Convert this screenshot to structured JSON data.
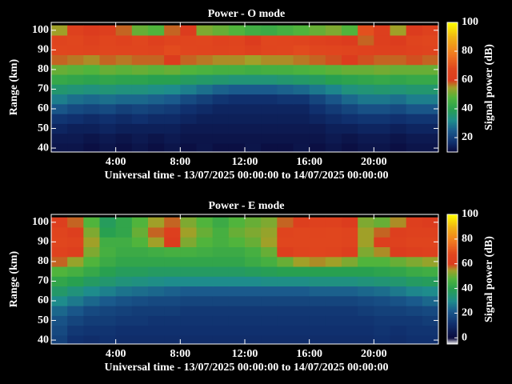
{
  "chart_data": [
    {
      "type": "heatmap",
      "title": "Power - O mode",
      "xlabel": "Universal time - 13/07/2025 00:00:00 to 14/07/2025 00:00:00",
      "ylabel": "Range (km)",
      "colorbar_label": "Signal power (dB)",
      "xlim": [
        0,
        24
      ],
      "ylim": [
        38,
        104
      ],
      "zlim": [
        10,
        100
      ],
      "xticks": [
        {
          "value": 4,
          "label": "4:00"
        },
        {
          "value": 8,
          "label": "8:00"
        },
        {
          "value": 12,
          "label": "12:00"
        },
        {
          "value": 16,
          "label": "16:00"
        },
        {
          "value": 20,
          "label": "20:00"
        }
      ],
      "yticks": [
        40,
        50,
        60,
        70,
        80,
        90,
        100
      ],
      "zticks": [
        20,
        40,
        60,
        80,
        100
      ],
      "colorscale": [
        [
          10,
          "#0a0a3c"
        ],
        [
          17,
          "#10306e"
        ],
        [
          25,
          "#1a5a8c"
        ],
        [
          32,
          "#1e8c8c"
        ],
        [
          40,
          "#28a050"
        ],
        [
          48,
          "#50b43c"
        ],
        [
          55,
          "#a0a028"
        ],
        [
          60,
          "#dc3c1e"
        ],
        [
          68,
          "#e0461e"
        ],
        [
          78,
          "#f07820"
        ],
        [
          90,
          "#f0b414"
        ],
        [
          100,
          "#ffff00"
        ]
      ],
      "x": [
        0.5,
        1.5,
        2.5,
        3.5,
        4.5,
        5.5,
        6.5,
        7.5,
        8.5,
        9.5,
        10.5,
        11.5,
        12.5,
        13.5,
        14.5,
        15.5,
        16.5,
        17.5,
        18.5,
        19.5,
        20.5,
        21.5,
        22.5,
        23.5
      ],
      "y": [
        40,
        45,
        50,
        55,
        60,
        65,
        70,
        75,
        80,
        85,
        90,
        95,
        100
      ],
      "z": [
        [
          12,
          12,
          11,
          12,
          11,
          12,
          11,
          12,
          11,
          12,
          11,
          11,
          12,
          11,
          11,
          12,
          11,
          12,
          11,
          12,
          12,
          11,
          12,
          12
        ],
        [
          13,
          13,
          12,
          13,
          12,
          13,
          12,
          13,
          12,
          12,
          12,
          12,
          12,
          12,
          12,
          12,
          12,
          13,
          12,
          13,
          13,
          12,
          13,
          13
        ],
        [
          15,
          14,
          14,
          15,
          14,
          14,
          14,
          14,
          13,
          13,
          13,
          13,
          13,
          13,
          13,
          13,
          13,
          14,
          14,
          15,
          15,
          14,
          15,
          15
        ],
        [
          18,
          17,
          16,
          17,
          16,
          17,
          16,
          16,
          15,
          14,
          14,
          14,
          14,
          14,
          14,
          14,
          15,
          16,
          17,
          18,
          18,
          17,
          18,
          18
        ],
        [
          24,
          22,
          21,
          22,
          20,
          21,
          20,
          19,
          17,
          16,
          15,
          15,
          15,
          15,
          15,
          15,
          17,
          19,
          21,
          23,
          23,
          22,
          24,
          24
        ],
        [
          30,
          28,
          27,
          28,
          27,
          27,
          26,
          25,
          22,
          20,
          18,
          17,
          17,
          17,
          18,
          18,
          21,
          24,
          27,
          29,
          29,
          28,
          30,
          30
        ],
        [
          36,
          35,
          34,
          35,
          34,
          34,
          33,
          32,
          30,
          28,
          26,
          25,
          25,
          25,
          26,
          27,
          29,
          31,
          34,
          35,
          36,
          35,
          36,
          36
        ],
        [
          43,
          42,
          41,
          42,
          41,
          41,
          40,
          40,
          38,
          37,
          36,
          35,
          35,
          35,
          36,
          37,
          38,
          40,
          41,
          42,
          43,
          42,
          43,
          43
        ],
        [
          50,
          49,
          48,
          50,
          49,
          50,
          49,
          50,
          48,
          47,
          46,
          46,
          45,
          46,
          46,
          47,
          48,
          49,
          50,
          50,
          51,
          50,
          50,
          50
        ],
        [
          58,
          57,
          56,
          58,
          57,
          58,
          58,
          60,
          58,
          57,
          56,
          56,
          55,
          56,
          56,
          57,
          58,
          59,
          60,
          59,
          58,
          58,
          59,
          58
        ],
        [
          68,
          67,
          66,
          68,
          67,
          67,
          66,
          69,
          68,
          67,
          66,
          67,
          64,
          67,
          68,
          69,
          68,
          67,
          66,
          65,
          64,
          63,
          65,
          66
        ],
        [
          66,
          68,
          64,
          67,
          65,
          68,
          63,
          66,
          67,
          68,
          65,
          66,
          60,
          68,
          67,
          66,
          64,
          62,
          60,
          58,
          62,
          60,
          66,
          68
        ],
        [
          55,
          64,
          60,
          62,
          58,
          50,
          48,
          58,
          60,
          52,
          50,
          48,
          45,
          44,
          46,
          48,
          50,
          52,
          48,
          70,
          62,
          55,
          60,
          64
        ]
      ]
    },
    {
      "type": "heatmap",
      "title": "Power - E mode",
      "xlabel": "Universal time - 13/07/2025 00:00:00 to 14/07/2025 00:00:00",
      "ylabel": "Range (km)",
      "colorbar_label": "Signal power (dB)",
      "xlim": [
        0,
        24
      ],
      "ylim": [
        38,
        104
      ],
      "zlim": [
        -5,
        100
      ],
      "xticks": [
        {
          "value": 4,
          "label": "4:00"
        },
        {
          "value": 8,
          "label": "8:00"
        },
        {
          "value": 12,
          "label": "12:00"
        },
        {
          "value": 16,
          "label": "16:00"
        },
        {
          "value": 20,
          "label": "20:00"
        }
      ],
      "yticks": [
        40,
        50,
        60,
        70,
        80,
        90,
        100
      ],
      "zticks": [
        0,
        20,
        40,
        60,
        80,
        100
      ],
      "colorscale": [
        [
          -5,
          "#ffffff"
        ],
        [
          0,
          "#0a0a3c"
        ],
        [
          12,
          "#10306e"
        ],
        [
          22,
          "#1a5a8c"
        ],
        [
          30,
          "#1e8c8c"
        ],
        [
          40,
          "#28a050"
        ],
        [
          48,
          "#50b43c"
        ],
        [
          55,
          "#a0a028"
        ],
        [
          60,
          "#dc3c1e"
        ],
        [
          68,
          "#e0461e"
        ],
        [
          78,
          "#f07820"
        ],
        [
          90,
          "#f0b414"
        ],
        [
          100,
          "#ffff00"
        ]
      ],
      "x": [
        0.5,
        1.5,
        2.5,
        3.5,
        4.5,
        5.5,
        6.5,
        7.5,
        8.5,
        9.5,
        10.5,
        11.5,
        12.5,
        13.5,
        14.5,
        15.5,
        16.5,
        17.5,
        18.5,
        19.5,
        20.5,
        21.5,
        22.5,
        23.5
      ],
      "y": [
        40,
        45,
        50,
        55,
        60,
        65,
        70,
        75,
        80,
        85,
        90,
        95,
        100
      ],
      "z": [
        [
          16,
          12,
          11,
          12,
          11,
          11,
          11,
          11,
          11,
          11,
          11,
          11,
          11,
          11,
          11,
          11,
          11,
          11,
          11,
          11,
          12,
          11,
          12,
          12
        ],
        [
          18,
          14,
          13,
          13,
          12,
          12,
          12,
          12,
          12,
          12,
          12,
          12,
          12,
          12,
          12,
          12,
          12,
          12,
          12,
          12,
          13,
          12,
          13,
          13
        ],
        [
          20,
          17,
          15,
          15,
          14,
          14,
          13,
          13,
          13,
          13,
          13,
          13,
          13,
          13,
          13,
          13,
          13,
          13,
          13,
          13,
          14,
          14,
          14,
          15
        ],
        [
          24,
          21,
          18,
          17,
          16,
          15,
          15,
          15,
          14,
          14,
          14,
          14,
          14,
          14,
          14,
          14,
          14,
          14,
          14,
          15,
          16,
          16,
          17,
          18
        ],
        [
          30,
          27,
          24,
          22,
          20,
          19,
          18,
          18,
          17,
          17,
          17,
          17,
          17,
          17,
          17,
          17,
          17,
          17,
          17,
          18,
          19,
          20,
          22,
          24
        ],
        [
          36,
          33,
          30,
          28,
          26,
          25,
          24,
          23,
          22,
          22,
          22,
          22,
          22,
          22,
          22,
          22,
          23,
          23,
          23,
          24,
          25,
          27,
          29,
          30
        ],
        [
          42,
          40,
          37,
          35,
          33,
          32,
          31,
          30,
          30,
          30,
          30,
          30,
          30,
          31,
          31,
          31,
          32,
          32,
          32,
          33,
          34,
          35,
          37,
          38
        ],
        [
          48,
          46,
          43,
          40,
          38,
          38,
          37,
          37,
          37,
          37,
          37,
          37,
          38,
          39,
          40,
          40,
          40,
          40,
          40,
          40,
          41,
          42,
          44,
          45
        ],
        [
          58,
          54,
          48,
          44,
          42,
          42,
          42,
          42,
          42,
          42,
          42,
          42,
          44,
          46,
          50,
          55,
          56,
          55,
          52,
          48,
          48,
          50,
          52,
          54
        ],
        [
          65,
          62,
          52,
          46,
          44,
          44,
          45,
          46,
          46,
          45,
          44,
          44,
          46,
          50,
          62,
          66,
          67,
          66,
          62,
          52,
          56,
          60,
          62,
          64
        ],
        [
          68,
          66,
          55,
          45,
          45,
          48,
          55,
          60,
          52,
          48,
          46,
          48,
          50,
          55,
          68,
          68,
          68,
          68,
          66,
          55,
          62,
          64,
          66,
          66
        ],
        [
          66,
          62,
          52,
          40,
          42,
          50,
          58,
          62,
          55,
          50,
          46,
          50,
          52,
          54,
          66,
          68,
          67,
          68,
          66,
          55,
          58,
          62,
          64,
          64
        ],
        [
          62,
          58,
          48,
          38,
          42,
          48,
          55,
          58,
          52,
          48,
          44,
          48,
          50,
          52,
          58,
          62,
          64,
          64,
          60,
          52,
          50,
          56,
          62,
          60
        ]
      ]
    }
  ]
}
